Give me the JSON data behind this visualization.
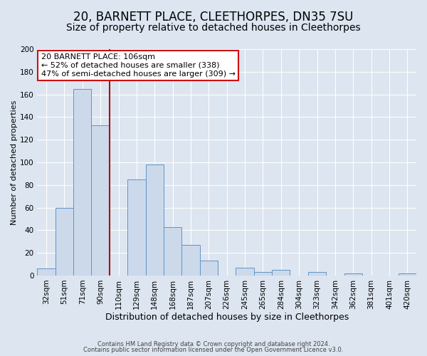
{
  "title": "20, BARNETT PLACE, CLEETHORPES, DN35 7SU",
  "subtitle": "Size of property relative to detached houses in Cleethorpes",
  "xlabel": "Distribution of detached houses by size in Cleethorpes",
  "ylabel": "Number of detached properties",
  "footnote1": "Contains HM Land Registry data © Crown copyright and database right 2024.",
  "footnote2": "Contains public sector information licensed under the Open Government Licence v3.0.",
  "bin_labels": [
    "32sqm",
    "51sqm",
    "71sqm",
    "90sqm",
    "110sqm",
    "129sqm",
    "148sqm",
    "168sqm",
    "187sqm",
    "207sqm",
    "226sqm",
    "245sqm",
    "265sqm",
    "284sqm",
    "304sqm",
    "323sqm",
    "342sqm",
    "362sqm",
    "381sqm",
    "401sqm",
    "420sqm"
  ],
  "bar_heights": [
    6,
    60,
    165,
    133,
    0,
    85,
    98,
    43,
    27,
    13,
    0,
    7,
    3,
    5,
    0,
    3,
    0,
    2,
    0,
    0,
    2
  ],
  "bar_color": "#ccd9ea",
  "bar_edge_color": "#6193c8",
  "vline_x_index": 3.5,
  "vline_color": "#aa1111",
  "annotation_text": "20 BARNETT PLACE: 106sqm\n← 52% of detached houses are smaller (338)\n47% of semi-detached houses are larger (309) →",
  "annotation_box_color": "#cc1111",
  "ylim": [
    0,
    200
  ],
  "yticks": [
    0,
    20,
    40,
    60,
    80,
    100,
    120,
    140,
    160,
    180,
    200
  ],
  "background_color": "#dce5f0",
  "plot_background": "#dce5f0",
  "grid_color": "#ffffff",
  "title_fontsize": 12,
  "subtitle_fontsize": 10,
  "xlabel_fontsize": 9,
  "ylabel_fontsize": 8,
  "tick_fontsize": 7.5,
  "annot_fontsize": 8
}
